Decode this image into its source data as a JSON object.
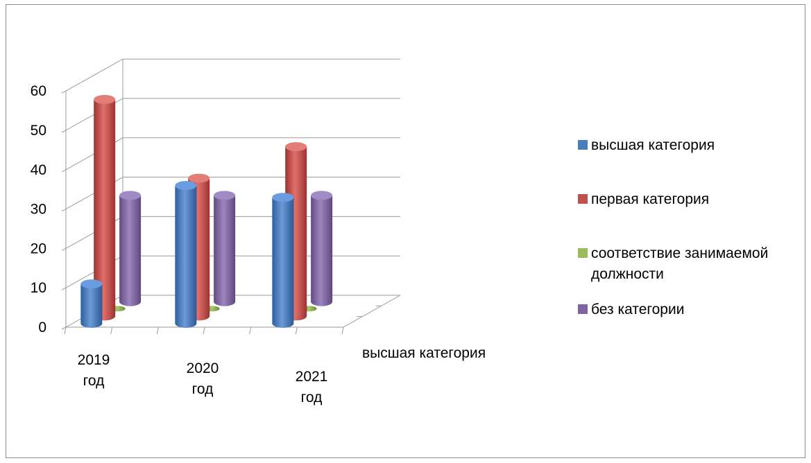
{
  "chart_data": {
    "type": "bar",
    "categories": [
      "2019 год",
      "2020 год",
      "2021 год"
    ],
    "category_lines": [
      [
        "2019",
        "год"
      ],
      [
        "2020",
        "год"
      ],
      [
        "2021",
        "год"
      ]
    ],
    "series": [
      {
        "name": "высшая категория",
        "values": [
          10,
          35,
          32
        ],
        "color": "#4a7ebb"
      },
      {
        "name": "первая категория",
        "values": [
          55,
          35,
          43
        ],
        "color": "#c0504d"
      },
      {
        "name": "соответствие занимаемой должности",
        "values": [
          0,
          0,
          0
        ],
        "color": "#9bbb59"
      },
      {
        "name": "без категории",
        "values": [
          27,
          27,
          27
        ],
        "color": "#8064a2"
      }
    ],
    "legend_lines": [
      [
        "высшая категория"
      ],
      [
        "первая категория"
      ],
      [
        "соответствие занимаемой",
        "должности"
      ],
      [
        "без категории"
      ]
    ],
    "depth_label": "высшая категория",
    "yticks": [
      0,
      10,
      20,
      30,
      40,
      50,
      60
    ],
    "ylim": [
      0,
      60
    ],
    "grid": true,
    "legend_position": "right",
    "three_d": true,
    "bar_shape": "cylinder"
  }
}
